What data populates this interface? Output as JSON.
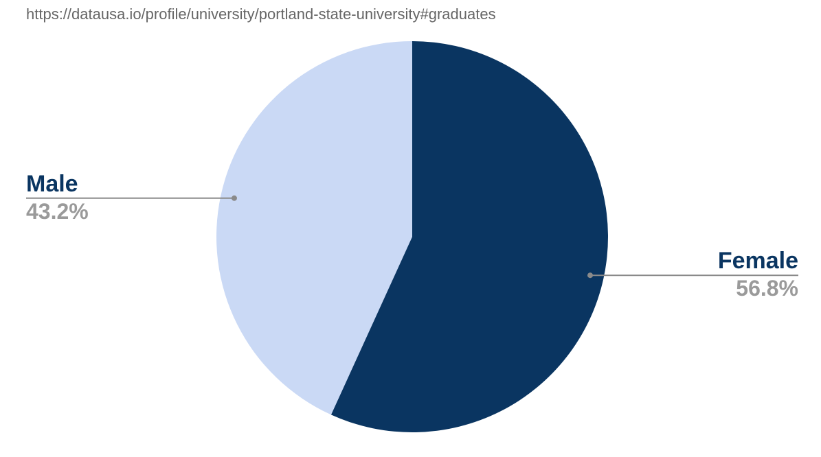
{
  "source": {
    "url": "https://datausa.io/profile/university/portland-state-university#graduates"
  },
  "chart_data": {
    "type": "pie",
    "categories": [
      "Female",
      "Male"
    ],
    "values": [
      56.8,
      43.2
    ],
    "value_labels": [
      "56.8%",
      "43.2%"
    ],
    "colors": [
      "#0a3561",
      "#cad9f5"
    ],
    "label_colors": {
      "name": "#0a3561",
      "value": "#9a9a9a",
      "leader": "#8a8a8a"
    },
    "start": "12 o'clock",
    "direction": "clockwise",
    "legend": "none"
  }
}
